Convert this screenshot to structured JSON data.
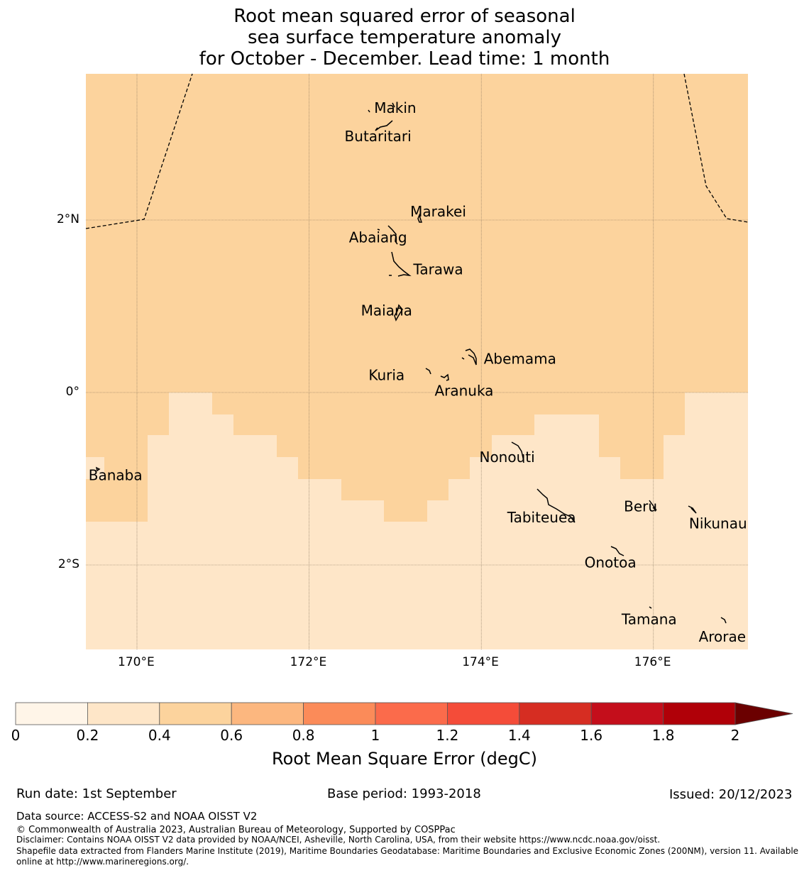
{
  "title": {
    "line1": "Root mean squared error of seasonal",
    "line2": "sea surface temperature anomaly",
    "line3": "for October - December. Lead time: 1 month"
  },
  "map": {
    "lon_range": [
      169.4,
      177.1
    ],
    "lat_range": [
      -3.0,
      3.7
    ],
    "x_ticks": [
      {
        "lon": 170,
        "label": "170°E"
      },
      {
        "lon": 172,
        "label": "172°E"
      },
      {
        "lon": 174,
        "label": "174°E"
      },
      {
        "lon": 176,
        "label": "176°E"
      }
    ],
    "y_ticks": [
      {
        "lat": 2,
        "label": "2°N"
      },
      {
        "lat": 0,
        "label": "0°"
      },
      {
        "lat": -2,
        "label": "2°S"
      }
    ],
    "colors": {
      "level_0_2": "#fff5e6",
      "level_0_2b": "#fee6c8",
      "level_0_4": "#fcd39d"
    },
    "islands": [
      {
        "name": "Makin",
        "lon": 173.0,
        "lat": 3.3
      },
      {
        "name": "Butaritari",
        "lon": 172.8,
        "lat": 2.97
      },
      {
        "name": "Marakei",
        "lon": 173.5,
        "lat": 2.1
      },
      {
        "name": "Abaiang",
        "lon": 172.8,
        "lat": 1.8
      },
      {
        "name": "Tarawa",
        "lon": 173.5,
        "lat": 1.43
      },
      {
        "name": "Maiana",
        "lon": 172.9,
        "lat": 0.95
      },
      {
        "name": "Abemama",
        "lon": 174.45,
        "lat": 0.39
      },
      {
        "name": "Kuria",
        "lon": 172.9,
        "lat": 0.2
      },
      {
        "name": "Aranuka",
        "lon": 173.8,
        "lat": 0.02
      },
      {
        "name": "Nonouti",
        "lon": 174.3,
        "lat": -0.75
      },
      {
        "name": "Banaba",
        "lon": 169.75,
        "lat": -0.96
      },
      {
        "name": "Tabiteuea",
        "lon": 174.7,
        "lat": -1.45
      },
      {
        "name": "Beru",
        "lon": 175.85,
        "lat": -1.32
      },
      {
        "name": "Nikunau",
        "lon": 176.75,
        "lat": -1.52
      },
      {
        "name": "Onotoa",
        "lon": 175.5,
        "lat": -1.97
      },
      {
        "name": "Tamana",
        "lon": 175.95,
        "lat": -2.63
      },
      {
        "name": "Arorae",
        "lon": 176.8,
        "lat": -2.83
      }
    ]
  },
  "colorbar": {
    "colors": [
      "#fff5e8",
      "#fee6c8",
      "#fcd39d",
      "#fcb77f",
      "#fb8b59",
      "#fb6b4b",
      "#f44c39",
      "#d62d22",
      "#c40e1b",
      "#b00008"
    ],
    "extend_color": "#6b0000",
    "ticks": [
      "0",
      "0.2",
      "0.4",
      "0.6",
      "0.8",
      "1",
      "1.2",
      "1.4",
      "1.6",
      "1.8",
      "2"
    ],
    "label": "Root Mean Square Error (degC)"
  },
  "footer": {
    "run_date": "Run date: 1st September",
    "base_period": "Base period: 1993-2018",
    "issued": "Issued: 20/12/2023",
    "data_source": "Data source: ACCESS-S2 and NOAA OISST V2",
    "copyright": "© Commonwealth of Australia 2023, Australian Bureau of Meteorology, Supported by COSPPac",
    "disclaimer": "Disclaimer: Contains NOAA OISST V2 data provided by NOAA/NCEI, Asheville, North Carolina, USA, from their website https://www.ncdc.noaa.gov/oisst.",
    "shapefile1": "Shapefile data extracted from Flanders Marine Institute (2019), Maritime Boundaries Geodatabase: Maritime Boundaries and Exclusive Economic Zones (200NM), version 11. Available",
    "shapefile2": "online at http://www.marineregions.org/."
  }
}
